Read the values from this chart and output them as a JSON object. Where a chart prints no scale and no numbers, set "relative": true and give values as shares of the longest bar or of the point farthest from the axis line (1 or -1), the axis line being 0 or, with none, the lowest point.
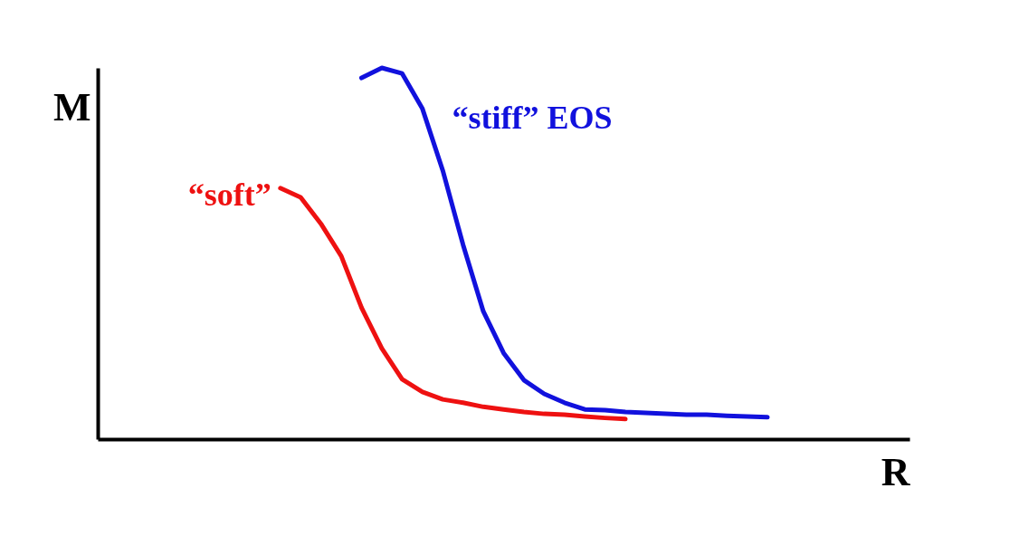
{
  "chart_data": {
    "type": "line",
    "relative": true,
    "xlabel": "R",
    "ylabel": "M",
    "tick_labels": false,
    "grid": false,
    "legend": false,
    "marker": "none",
    "line_style": "solid",
    "categories": [
      null,
      null,
      null,
      null,
      null,
      null,
      null,
      null,
      null,
      null,
      null,
      null,
      null,
      null,
      null,
      null,
      null,
      null,
      null,
      null,
      null,
      null,
      null,
      null,
      null,
      null,
      null,
      null,
      null,
      null,
      null,
      null,
      null,
      null,
      null,
      null,
      null,
      null,
      null,
      null,
      null
    ],
    "series": [
      {
        "name": "“soft”",
        "color": "#ee1111",
        "values": [
          null,
          null,
          null,
          null,
          null,
          null,
          null,
          null,
          null,
          0.676,
          0.651,
          0.58,
          0.493,
          0.354,
          0.244,
          0.161,
          0.127,
          0.107,
          0.098,
          0.087,
          0.08,
          0.073,
          0.068,
          0.066,
          0.061,
          0.057,
          0.054,
          null,
          null,
          null,
          null,
          null,
          null,
          null,
          null,
          null,
          null,
          null,
          null,
          null,
          null
        ]
      },
      {
        "name": "“stiff” EOS",
        "color": "#1111dd",
        "values": [
          null,
          null,
          null,
          null,
          null,
          null,
          null,
          null,
          null,
          null,
          null,
          null,
          null,
          0.973,
          1,
          0.985,
          0.89,
          0.724,
          0.524,
          0.344,
          0.232,
          0.159,
          0.122,
          0.098,
          0.08,
          0.078,
          0.073,
          0.071,
          0.068,
          0.066,
          0.066,
          0.063,
          0.061,
          0.059,
          null,
          null,
          null,
          null,
          null,
          null,
          null
        ]
      }
    ]
  }
}
